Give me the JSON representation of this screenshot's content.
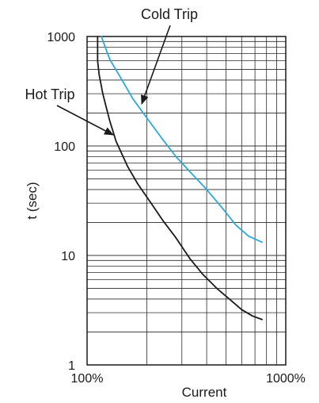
{
  "chart_data": {
    "type": "line",
    "xlabel": "Current",
    "ylabel": "t (sec)",
    "x_scale": "log",
    "y_scale": "log",
    "xlim": [
      100,
      1000
    ],
    "ylim": [
      1,
      1000
    ],
    "grid": true,
    "x_tick_labels": [
      "100%",
      "1000%"
    ],
    "y_tick_labels": [
      "1",
      "10",
      "100",
      "1000"
    ],
    "series": [
      {
        "name": "Cold Trip",
        "color": "#29a8e0",
        "x": [
          118,
          130,
          150,
          170,
          200,
          240,
          280,
          330,
          400,
          480,
          560,
          650,
          760
        ],
        "y": [
          1000,
          620,
          400,
          270,
          180,
          115,
          80,
          58,
          40,
          27,
          19,
          15,
          13.2
        ]
      },
      {
        "name": "Hot Trip",
        "color": "#1a1a1a",
        "x": [
          113,
          113,
          115,
          120,
          130,
          140,
          160,
          180,
          210,
          240,
          280,
          330,
          380,
          450,
          520,
          600,
          680,
          760
        ],
        "y": [
          1000,
          600,
          450,
          300,
          170,
          110,
          65,
          45,
          30,
          21,
          14.5,
          9.3,
          6.8,
          5.0,
          4.0,
          3.2,
          2.8,
          2.6
        ]
      }
    ],
    "annotations": [
      {
        "text": "Cold Trip",
        "target": "Cold Trip"
      },
      {
        "text": "Hot Trip",
        "target": "Hot Trip"
      }
    ]
  }
}
